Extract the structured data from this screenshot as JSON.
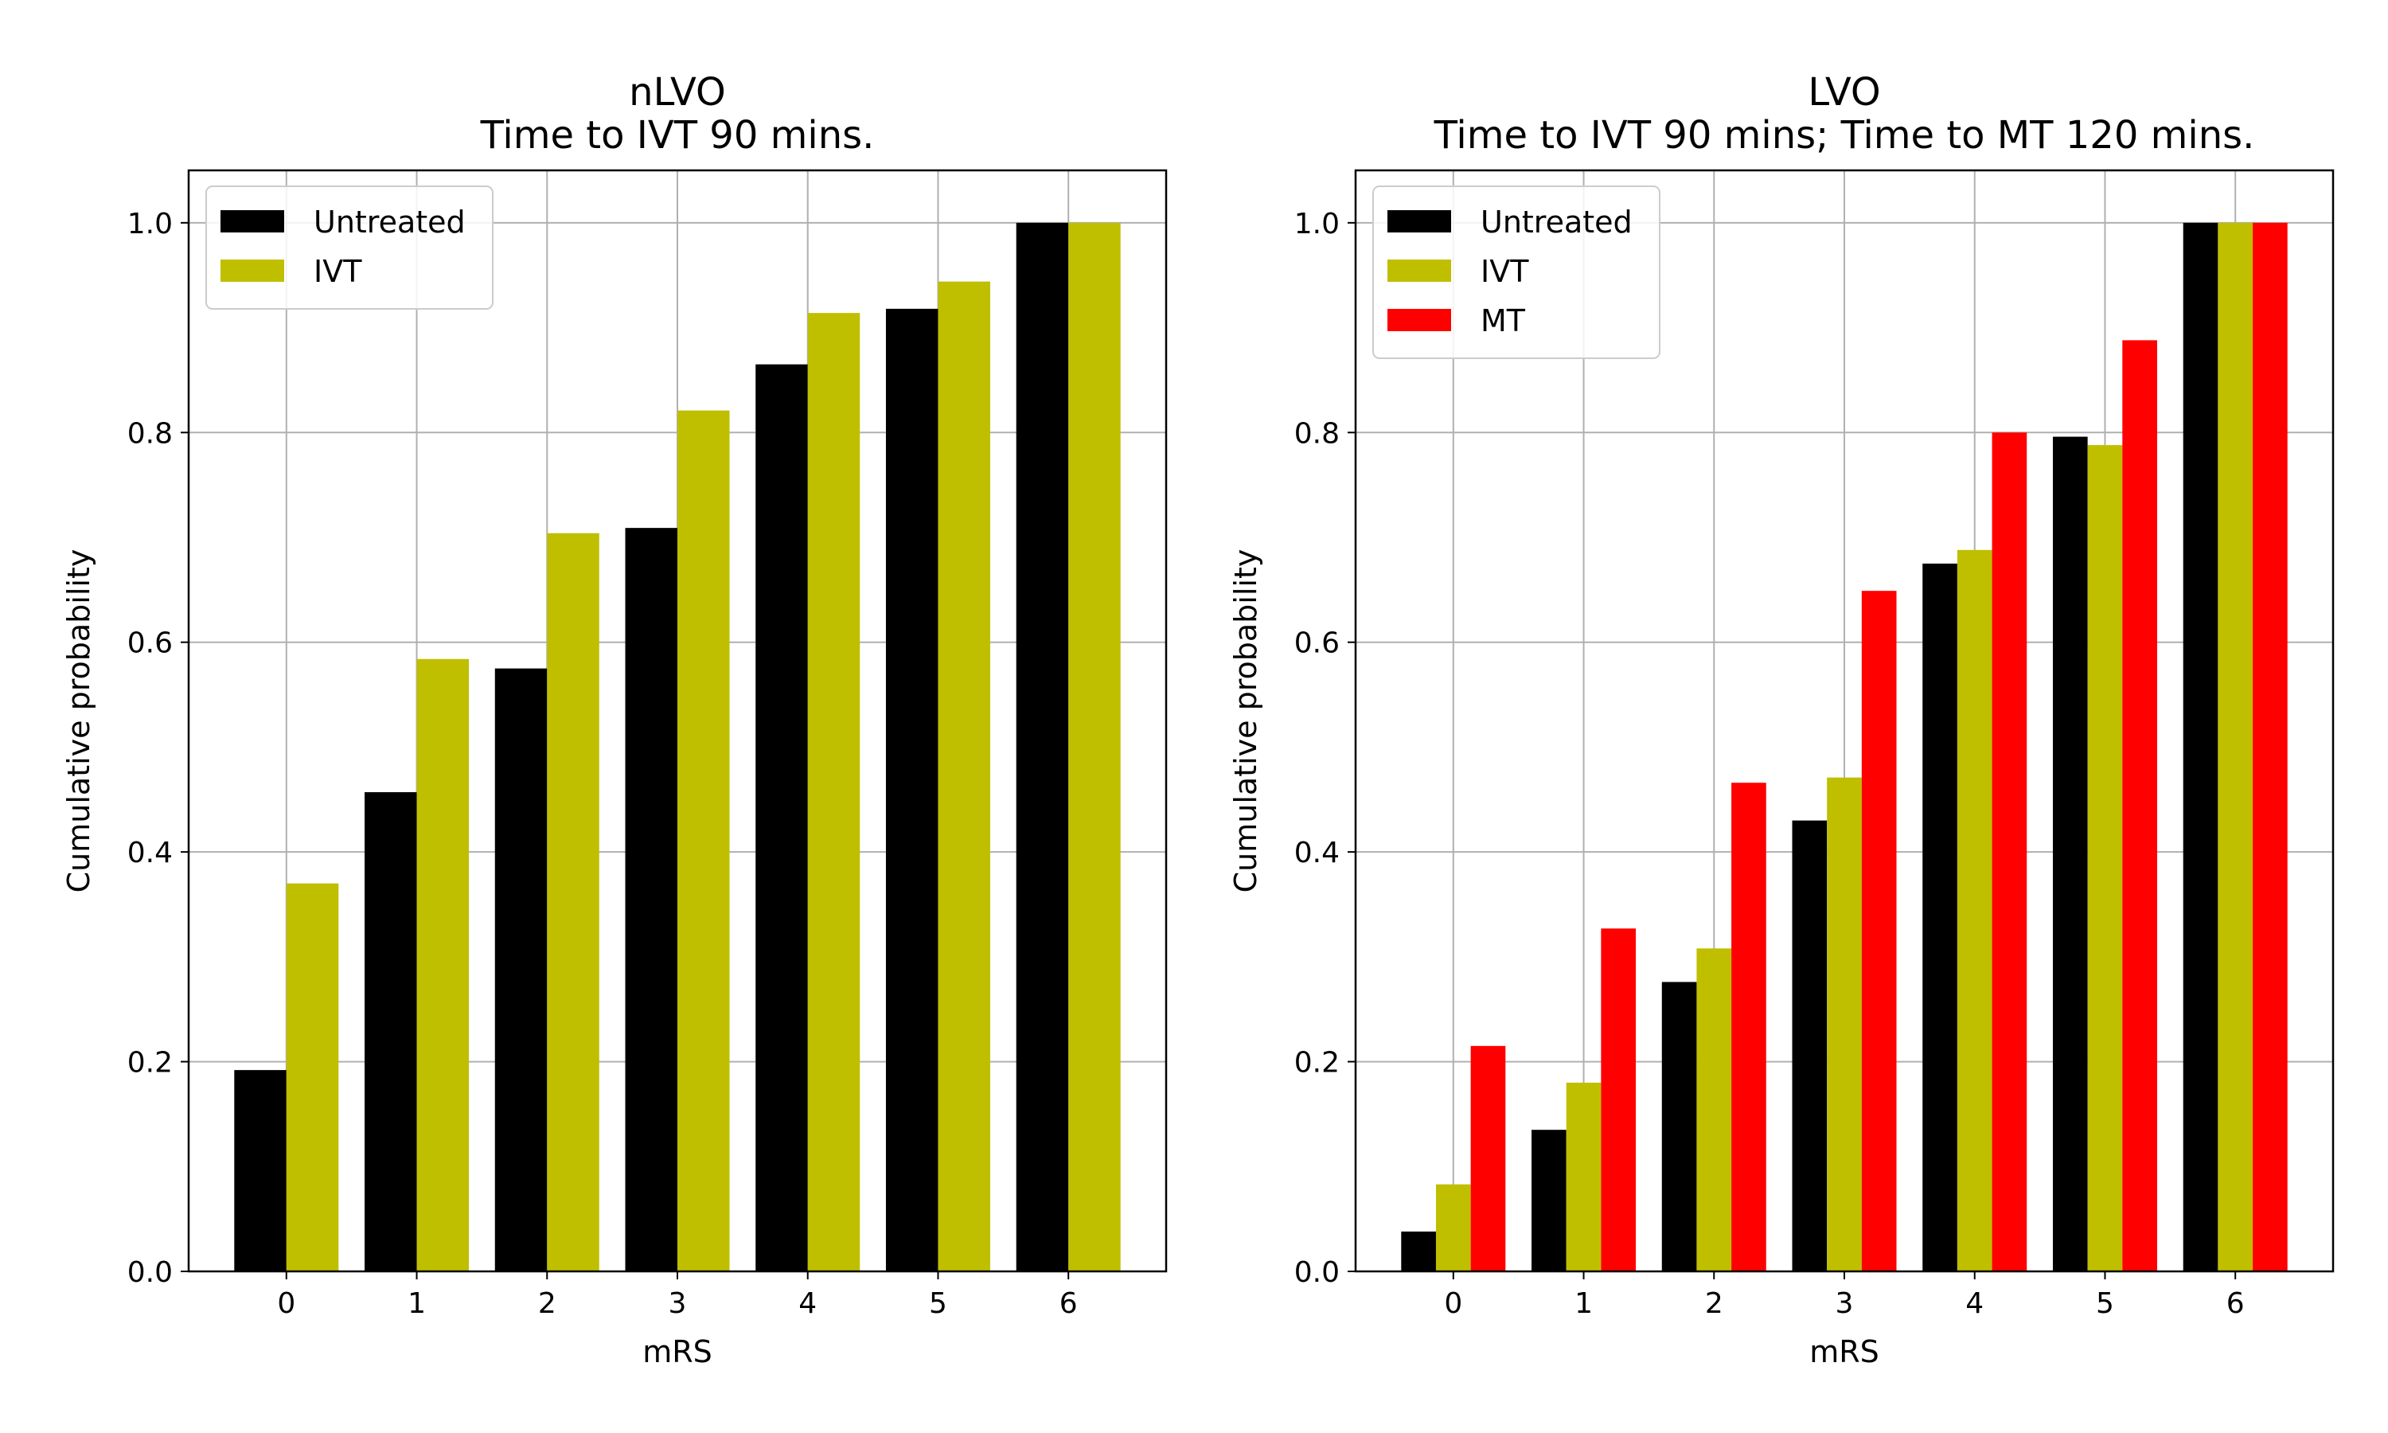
{
  "chart_data": [
    {
      "type": "bar",
      "title": "nLVO",
      "subtitle": "Time to IVT 90 mins.",
      "xlabel": "mRS",
      "ylabel": "Cumulative probability",
      "categories": [
        "0",
        "1",
        "2",
        "3",
        "4",
        "5",
        "6"
      ],
      "ylim": [
        0,
        1.05
      ],
      "yticks": [
        "0.0",
        "0.2",
        "0.4",
        "0.6",
        "0.8",
        "1.0"
      ],
      "grid": true,
      "legend_position": "top-left",
      "series": [
        {
          "name": "Untreated",
          "color": "#000000",
          "values": [
            0.192,
            0.457,
            0.575,
            0.709,
            0.865,
            0.918,
            1.0
          ]
        },
        {
          "name": "IVT",
          "color": "#bfbf00",
          "values": [
            0.37,
            0.584,
            0.704,
            0.821,
            0.914,
            0.944,
            1.0
          ]
        }
      ]
    },
    {
      "type": "bar",
      "title": "LVO",
      "subtitle": "Time to IVT 90 mins; Time to MT 120 mins.",
      "xlabel": "mRS",
      "ylabel": "Cumulative probability",
      "categories": [
        "0",
        "1",
        "2",
        "3",
        "4",
        "5",
        "6"
      ],
      "ylim": [
        0,
        1.05
      ],
      "yticks": [
        "0.0",
        "0.2",
        "0.4",
        "0.6",
        "0.8",
        "1.0"
      ],
      "grid": true,
      "legend_position": "top-left",
      "series": [
        {
          "name": "Untreated",
          "color": "#000000",
          "values": [
            0.038,
            0.135,
            0.276,
            0.43,
            0.675,
            0.796,
            1.0
          ]
        },
        {
          "name": "IVT",
          "color": "#bfbf00",
          "values": [
            0.083,
            0.18,
            0.308,
            0.471,
            0.688,
            0.788,
            1.0
          ]
        },
        {
          "name": "MT",
          "color": "#ff0000",
          "values": [
            0.215,
            0.327,
            0.466,
            0.649,
            0.8,
            0.888,
            1.0
          ]
        }
      ]
    }
  ]
}
